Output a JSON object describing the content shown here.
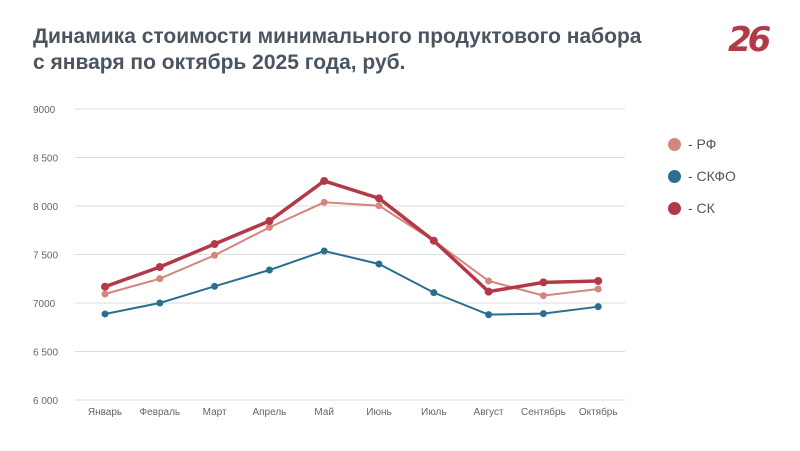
{
  "chart_data": {
    "type": "line",
    "title": "Динамика стоимости минимального продуктового набора с января по октябрь 2025 года, руб.",
    "categories": [
      "Январь",
      "Февраль",
      "Март",
      "Апрель",
      "Май",
      "Июнь",
      "Июль",
      "Август",
      "Сентябрь",
      "Октябрь"
    ],
    "ylim": [
      6000,
      9000
    ],
    "yticks": [
      6000,
      6500,
      7000,
      7500,
      8000,
      8500,
      9000
    ],
    "ytick_labels": [
      "6 000",
      "6 500",
      "7000",
      "7 500",
      "8 000",
      "8 500",
      "9000"
    ],
    "grid": true,
    "legend_placement": "right",
    "series": [
      {
        "name": "- РФ",
        "color": "#d4867c",
        "values": [
          7093,
          7251,
          7492,
          7780,
          8038,
          8003,
          7642,
          7227,
          7076,
          7144
        ]
      },
      {
        "name": "- СКФО",
        "color": "#2a6f8f",
        "values": [
          6887,
          7000,
          7172,
          7340,
          7536,
          7402,
          7107,
          6880,
          6890,
          6962
        ]
      },
      {
        "name": "- СК",
        "color": "#b23a48",
        "values": [
          7168,
          7371,
          7608,
          7845,
          8258,
          8079,
          7642,
          7117,
          7213,
          7227
        ]
      }
    ]
  },
  "logo": "26"
}
